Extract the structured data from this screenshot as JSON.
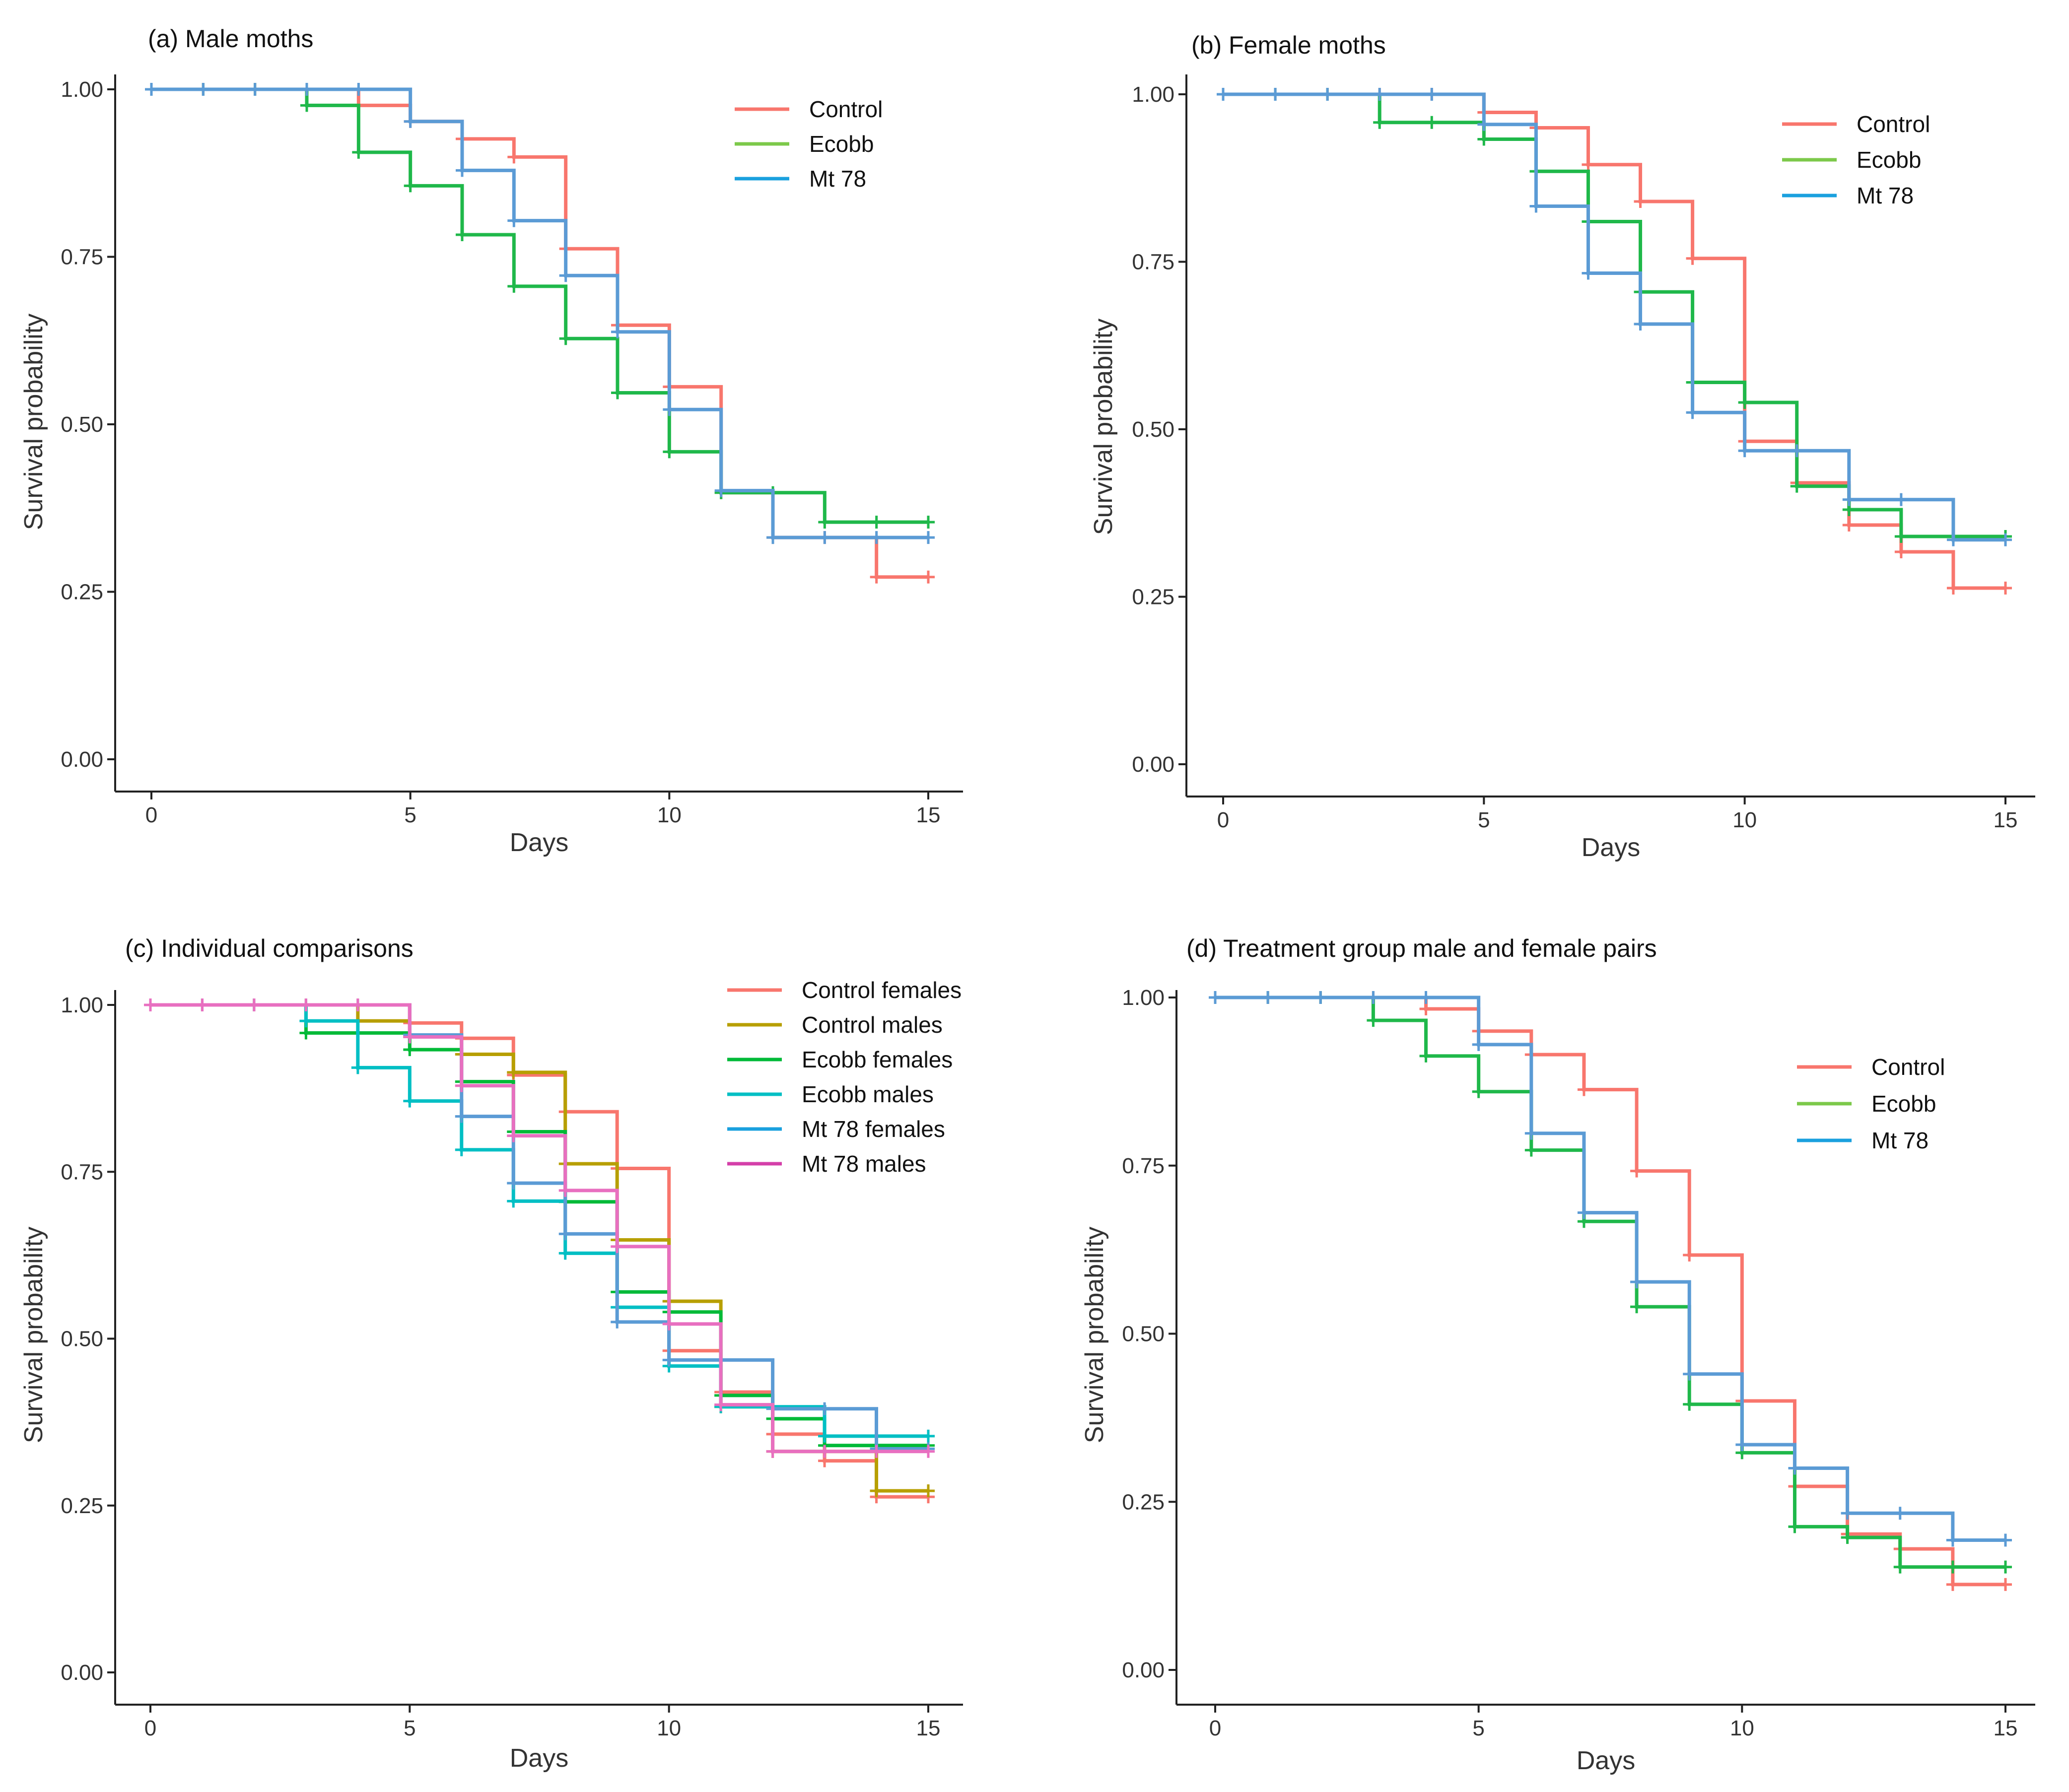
{
  "figure": {
    "description": "Kaplan-Meier survival curves, four panels"
  },
  "chart_data": [
    {
      "type": "line",
      "title": "(a) Male moths",
      "xlabel": "Days",
      "ylabel": "Survival probability",
      "xlim": [
        0,
        15
      ],
      "ylim": [
        0,
        1
      ],
      "xticks": [
        "0",
        "5",
        "10",
        "15"
      ],
      "yticks": [
        "0.00",
        "0.25",
        "0.50",
        "0.75",
        "1.00"
      ],
      "grid": false,
      "legend": "top-right",
      "series": [
        {
          "name": "Control",
          "legend_color": "#F8766D",
          "color": "#F8766D",
          "x": [
            0,
            1,
            2,
            3,
            4,
            5,
            6,
            7,
            8,
            9,
            10,
            11,
            12,
            13,
            14,
            15
          ],
          "values": [
            1.0,
            1.0,
            1.0,
            1.0,
            0.976,
            0.952,
            0.926,
            0.899,
            0.762,
            0.648,
            0.556,
            0.398,
            0.331,
            0.331,
            0.272,
            0.272
          ]
        },
        {
          "name": "Ecobb",
          "legend_color": "#7CC94A",
          "color": "#1FB84A",
          "x": [
            0,
            1,
            2,
            3,
            4,
            5,
            6,
            7,
            8,
            9,
            10,
            11,
            12,
            13,
            14,
            15
          ],
          "values": [
            1.0,
            1.0,
            1.0,
            0.976,
            0.906,
            0.856,
            0.783,
            0.706,
            0.628,
            0.547,
            0.459,
            0.398,
            0.398,
            0.354,
            0.354,
            0.354
          ]
        },
        {
          "name": "Mt 78",
          "legend_color": "#1AA0DE",
          "color": "#5B9BD5",
          "x": [
            0,
            1,
            2,
            3,
            4,
            5,
            6,
            7,
            8,
            9,
            10,
            11,
            12,
            13,
            14,
            15
          ],
          "values": [
            1.0,
            1.0,
            1.0,
            1.0,
            1.0,
            0.952,
            0.879,
            0.804,
            0.722,
            0.638,
            0.522,
            0.401,
            0.331,
            0.331,
            0.331,
            0.331
          ]
        }
      ]
    },
    {
      "type": "line",
      "title": "(b) Female moths",
      "xlabel": "Days",
      "ylabel": "Survival probability",
      "xlim": [
        0,
        15
      ],
      "ylim": [
        0,
        1
      ],
      "xticks": [
        "0",
        "5",
        "10",
        "15"
      ],
      "yticks": [
        "0.00",
        "0.25",
        "0.50",
        "0.75",
        "1.00"
      ],
      "grid": false,
      "legend": "top-right",
      "series": [
        {
          "name": "Control",
          "legend_color": "#F8766D",
          "color": "#F8766D",
          "x": [
            0,
            1,
            2,
            3,
            4,
            5,
            6,
            7,
            8,
            9,
            10,
            11,
            12,
            13,
            14,
            15
          ],
          "values": [
            1.0,
            1.0,
            1.0,
            1.0,
            1.0,
            0.973,
            0.95,
            0.895,
            0.84,
            0.755,
            0.482,
            0.42,
            0.357,
            0.317,
            0.263,
            0.263
          ]
        },
        {
          "name": "Ecobb",
          "legend_color": "#7CC94A",
          "color": "#1FB84A",
          "x": [
            0,
            1,
            2,
            3,
            4,
            5,
            6,
            7,
            8,
            9,
            10,
            11,
            12,
            13,
            14,
            15
          ],
          "values": [
            1.0,
            1.0,
            1.0,
            0.958,
            0.958,
            0.933,
            0.885,
            0.81,
            0.705,
            0.57,
            0.54,
            0.415,
            0.38,
            0.34,
            0.34,
            0.34
          ]
        },
        {
          "name": "Mt 78",
          "legend_color": "#1AA0DE",
          "color": "#5B9BD5",
          "x": [
            0,
            1,
            2,
            3,
            4,
            5,
            6,
            7,
            8,
            9,
            10,
            11,
            12,
            13,
            14,
            15
          ],
          "values": [
            1.0,
            1.0,
            1.0,
            1.0,
            1.0,
            0.955,
            0.833,
            0.733,
            0.657,
            0.525,
            0.468,
            0.468,
            0.395,
            0.395,
            0.335,
            0.335
          ]
        }
      ]
    },
    {
      "type": "line",
      "title": "(c) Individual comparisons",
      "xlabel": "Days",
      "ylabel": "Survival probability",
      "xlim": [
        0,
        15
      ],
      "ylim": [
        0,
        1
      ],
      "xticks": [
        "0",
        "5",
        "10",
        "15"
      ],
      "yticks": [
        "0.00",
        "0.25",
        "0.50",
        "0.75",
        "1.00"
      ],
      "grid": false,
      "legend": "top-right",
      "series": [
        {
          "name": "Control females",
          "legend_color": "#F8766D",
          "color": "#F8766D",
          "x": [
            0,
            1,
            2,
            3,
            4,
            5,
            6,
            7,
            8,
            9,
            10,
            11,
            12,
            13,
            14,
            15
          ],
          "values": [
            1.0,
            1.0,
            1.0,
            1.0,
            1.0,
            0.973,
            0.95,
            0.895,
            0.84,
            0.755,
            0.482,
            0.42,
            0.357,
            0.317,
            0.263,
            0.263
          ]
        },
        {
          "name": "Control males",
          "legend_color": "#B79F00",
          "color": "#B79F00",
          "x": [
            0,
            1,
            2,
            3,
            4,
            5,
            6,
            7,
            8,
            9,
            10,
            11,
            12,
            13,
            14,
            15
          ],
          "values": [
            1.0,
            1.0,
            1.0,
            1.0,
            0.976,
            0.952,
            0.926,
            0.899,
            0.762,
            0.648,
            0.556,
            0.398,
            0.331,
            0.331,
            0.272,
            0.272
          ]
        },
        {
          "name": "Ecobb females",
          "legend_color": "#00BA38",
          "color": "#00BA38",
          "x": [
            0,
            1,
            2,
            3,
            4,
            5,
            6,
            7,
            8,
            9,
            10,
            11,
            12,
            13,
            14,
            15
          ],
          "values": [
            1.0,
            1.0,
            1.0,
            0.958,
            0.958,
            0.933,
            0.885,
            0.81,
            0.705,
            0.57,
            0.54,
            0.415,
            0.38,
            0.34,
            0.34,
            0.34
          ]
        },
        {
          "name": "Ecobb males",
          "legend_color": "#00BFC4",
          "color": "#00BFC4",
          "x": [
            0,
            1,
            2,
            3,
            4,
            5,
            6,
            7,
            8,
            9,
            10,
            11,
            12,
            13,
            14,
            15
          ],
          "values": [
            1.0,
            1.0,
            1.0,
            0.976,
            0.906,
            0.856,
            0.783,
            0.706,
            0.628,
            0.547,
            0.459,
            0.398,
            0.398,
            0.354,
            0.354,
            0.354
          ]
        },
        {
          "name": "Mt 78 females",
          "legend_color": "#1AA0DE",
          "color": "#5B9BD5",
          "x": [
            0,
            1,
            2,
            3,
            4,
            5,
            6,
            7,
            8,
            9,
            10,
            11,
            12,
            13,
            14,
            15
          ],
          "values": [
            1.0,
            1.0,
            1.0,
            1.0,
            1.0,
            0.955,
            0.833,
            0.733,
            0.657,
            0.525,
            0.468,
            0.468,
            0.395,
            0.395,
            0.335,
            0.335
          ]
        },
        {
          "name": "Mt 78 males",
          "legend_color": "#D43FA9",
          "color": "#E86FC0",
          "x": [
            0,
            1,
            2,
            3,
            4,
            5,
            6,
            7,
            8,
            9,
            10,
            11,
            12,
            13,
            14,
            15
          ],
          "values": [
            1.0,
            1.0,
            1.0,
            1.0,
            1.0,
            0.952,
            0.879,
            0.804,
            0.722,
            0.638,
            0.522,
            0.401,
            0.331,
            0.331,
            0.331,
            0.331
          ]
        }
      ]
    },
    {
      "type": "line",
      "title": "(d) Treatment group male and female pairs",
      "xlabel": "Days",
      "ylabel": "Survival probability",
      "xlim": [
        0,
        15
      ],
      "ylim": [
        0,
        1
      ],
      "xticks": [
        "0",
        "5",
        "10",
        "15"
      ],
      "yticks": [
        "0.00",
        "0.25",
        "0.50",
        "0.75",
        "1.00"
      ],
      "grid": false,
      "legend": "right",
      "series": [
        {
          "name": "Control",
          "legend_color": "#F8766D",
          "color": "#F8766D",
          "x": [
            0,
            1,
            2,
            3,
            4,
            5,
            6,
            7,
            8,
            9,
            10,
            11,
            12,
            13,
            14,
            15
          ],
          "values": [
            1.0,
            1.0,
            1.0,
            1.0,
            0.983,
            0.95,
            0.915,
            0.863,
            0.742,
            0.617,
            0.4,
            0.273,
            0.202,
            0.18,
            0.127,
            0.127
          ]
        },
        {
          "name": "Ecobb",
          "legend_color": "#7CC94A",
          "color": "#1FB84A",
          "x": [
            0,
            1,
            2,
            3,
            4,
            5,
            6,
            7,
            8,
            9,
            10,
            11,
            12,
            13,
            14,
            15
          ],
          "values": [
            1.0,
            1.0,
            1.0,
            0.966,
            0.913,
            0.86,
            0.773,
            0.667,
            0.54,
            0.395,
            0.323,
            0.213,
            0.197,
            0.153,
            0.153,
            0.153
          ]
        },
        {
          "name": "Mt 78",
          "legend_color": "#1AA0DE",
          "color": "#5B9BD5",
          "x": [
            0,
            1,
            2,
            3,
            4,
            5,
            6,
            7,
            8,
            9,
            10,
            11,
            12,
            13,
            14,
            15
          ],
          "values": [
            1.0,
            1.0,
            1.0,
            1.0,
            1.0,
            0.93,
            0.798,
            0.68,
            0.577,
            0.44,
            0.335,
            0.3,
            0.233,
            0.233,
            0.193,
            0.193
          ]
        }
      ]
    }
  ]
}
